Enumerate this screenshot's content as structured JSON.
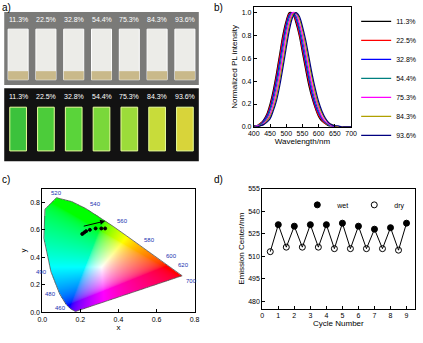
{
  "chart_data": [
    {
      "type": "photo",
      "title": "a)",
      "labels": [
        "11.3%",
        "22.5%",
        "32.8%",
        "54.4%",
        "75.3%",
        "84.3%",
        "93.6%"
      ]
    },
    {
      "type": "line",
      "title": "b)",
      "x_label": "Wavelength/nm",
      "y_label": "Normalized PL intensity",
      "xlim": [
        400,
        700
      ],
      "ylim": [
        0,
        1.05
      ],
      "xticks": [
        400,
        450,
        500,
        550,
        600,
        650,
        700
      ],
      "yticks": [
        {
          "value": 0,
          "label": "0.0"
        },
        0.2,
        0.4,
        0.6,
        0.8,
        {
          "value": 1,
          "label": "1.0"
        }
      ],
      "legend": "right",
      "x": [
        400,
        410,
        420,
        430,
        440,
        450,
        460,
        470,
        480,
        490,
        500,
        510,
        520,
        530,
        540,
        550,
        560,
        570,
        580,
        590,
        600,
        610,
        620,
        630,
        640,
        650,
        660,
        670,
        680,
        690,
        700
      ],
      "series": [
        {
          "name": "11.3%",
          "color": "#000000",
          "values": [
            0.01,
            0.01,
            0.03,
            0.06,
            0.11,
            0.2,
            0.32,
            0.47,
            0.64,
            0.81,
            0.93,
            1.0,
            0.99,
            0.91,
            0.8,
            0.65,
            0.5,
            0.36,
            0.25,
            0.16,
            0.09,
            0.05,
            0.03,
            0.01,
            0.01,
            0,
            0,
            0,
            0,
            0,
            0
          ]
        },
        {
          "name": "22.5%",
          "color": "#ff0000",
          "values": [
            0,
            0.01,
            0.03,
            0.05,
            0.1,
            0.18,
            0.29,
            0.44,
            0.61,
            0.78,
            0.91,
            0.99,
            0.99,
            0.93,
            0.82,
            0.68,
            0.53,
            0.39,
            0.27,
            0.17,
            0.1,
            0.06,
            0.03,
            0.02,
            0.01,
            0,
            0,
            0,
            0,
            0,
            0
          ]
        },
        {
          "name": "32.8%",
          "color": "#0000ff",
          "values": [
            0,
            0.01,
            0.02,
            0.05,
            0.09,
            0.16,
            0.27,
            0.41,
            0.57,
            0.74,
            0.89,
            0.98,
            1.0,
            0.95,
            0.85,
            0.71,
            0.56,
            0.42,
            0.29,
            0.19,
            0.12,
            0.07,
            0.04,
            0.02,
            0.01,
            0,
            0,
            0,
            0,
            0,
            0
          ]
        },
        {
          "name": "54.4%",
          "color": "#008080",
          "values": [
            0,
            0.01,
            0.02,
            0.04,
            0.07,
            0.14,
            0.23,
            0.36,
            0.52,
            0.69,
            0.85,
            0.96,
            1.0,
            0.97,
            0.88,
            0.76,
            0.61,
            0.46,
            0.33,
            0.22,
            0.14,
            0.08,
            0.04,
            0.02,
            0.01,
            0.01,
            0,
            0,
            0,
            0,
            0
          ]
        },
        {
          "name": "75.3%",
          "color": "#ff00ff",
          "values": [
            0,
            0.01,
            0.01,
            0.03,
            0.06,
            0.11,
            0.2,
            0.32,
            0.47,
            0.64,
            0.81,
            0.93,
            1.0,
            0.99,
            0.91,
            0.8,
            0.65,
            0.5,
            0.36,
            0.25,
            0.16,
            0.09,
            0.05,
            0.03,
            0.01,
            0.01,
            0,
            0,
            0,
            0,
            0
          ]
        },
        {
          "name": "84.3%",
          "color": "#b0a000",
          "values": [
            0,
            0,
            0.01,
            0.02,
            0.05,
            0.09,
            0.16,
            0.27,
            0.41,
            0.57,
            0.74,
            0.89,
            0.98,
            1.0,
            0.95,
            0.85,
            0.71,
            0.56,
            0.42,
            0.29,
            0.19,
            0.12,
            0.07,
            0.04,
            0.02,
            0.01,
            0,
            0,
            0,
            0,
            0
          ]
        },
        {
          "name": "93.6%",
          "color": "#000080",
          "values": [
            0,
            0,
            0.01,
            0.02,
            0.04,
            0.07,
            0.14,
            0.23,
            0.36,
            0.52,
            0.69,
            0.85,
            0.96,
            1.0,
            0.97,
            0.88,
            0.76,
            0.61,
            0.46,
            0.33,
            0.22,
            0.14,
            0.08,
            0.04,
            0.02,
            0.01,
            0.01,
            0,
            0,
            0,
            0
          ]
        }
      ]
    },
    {
      "type": "scatter",
      "title": "c)",
      "x_label": "x",
      "y_label": "y",
      "xlim": [
        0,
        0.8
      ],
      "ylim": [
        0,
        0.9
      ],
      "xticks": [
        {
          "value": 0,
          "label": "0.0"
        },
        0.2,
        0.4,
        0.6,
        0.8
      ],
      "yticks": [
        {
          "value": 0,
          "label": "0.0"
        },
        0.2,
        0.4,
        0.6,
        0.8
      ],
      "spectral_locus": {
        "wavelengths": [
          380,
          440,
          450,
          460,
          470,
          480,
          490,
          500,
          510,
          520,
          530,
          540,
          550,
          560,
          570,
          580,
          590,
          600,
          610,
          620,
          640,
          700
        ],
        "x": [
          0.1741,
          0.1644,
          0.1566,
          0.144,
          0.1241,
          0.0913,
          0.0454,
          0.0082,
          0.0139,
          0.0743,
          0.1547,
          0.2296,
          0.3016,
          0.3731,
          0.4441,
          0.5125,
          0.5752,
          0.627,
          0.6658,
          0.6915,
          0.719,
          0.7347
        ],
        "y": [
          0.005,
          0.0109,
          0.0177,
          0.0297,
          0.0578,
          0.1327,
          0.295,
          0.5384,
          0.7502,
          0.8338,
          0.8059,
          0.7543,
          0.6923,
          0.6245,
          0.5547,
          0.4866,
          0.4242,
          0.3725,
          0.334,
          0.3083,
          0.2809,
          0.2653
        ],
        "labels": [
          null,
          null,
          null,
          "460",
          null,
          "480",
          "490",
          null,
          null,
          "520",
          null,
          "540",
          null,
          "560",
          null,
          "580",
          null,
          "600",
          null,
          "620",
          null,
          "700"
        ]
      },
      "series": [
        {
          "color": "#000000",
          "marker": "circle",
          "x": [
            0.21,
            0.22,
            0.23,
            0.25,
            0.28,
            0.31,
            0.33
          ],
          "values": [
            0.57,
            0.58,
            0.59,
            0.6,
            0.61,
            0.61,
            0.61
          ]
        }
      ]
    },
    {
      "type": "scatter",
      "title": "d)",
      "x_label": "Cycle Number",
      "y_label": "Emission Center/nm",
      "xlim": [
        0,
        9.5
      ],
      "ylim": [
        475,
        555
      ],
      "xticks": [
        0,
        1,
        2,
        3,
        4,
        5,
        6,
        7,
        8,
        9
      ],
      "yticks": [
        480,
        495,
        510,
        525,
        540,
        555
      ],
      "legend": "upper right",
      "series": [
        {
          "name": "wet",
          "color": "#000000",
          "marker": "circle",
          "x": [
            1,
            2,
            3,
            4,
            5,
            6,
            7,
            8,
            9
          ],
          "values": [
            531,
            530,
            531,
            531,
            532,
            530,
            528,
            529,
            532
          ]
        },
        {
          "name": "dry",
          "color": "#000000",
          "marker": "circle-open",
          "x": [
            0.5,
            1.5,
            2.5,
            3.5,
            4.5,
            5.5,
            6.5,
            7.5,
            8.5
          ],
          "values": [
            513,
            516,
            516,
            516,
            515,
            515,
            515,
            515,
            514
          ]
        }
      ]
    }
  ]
}
